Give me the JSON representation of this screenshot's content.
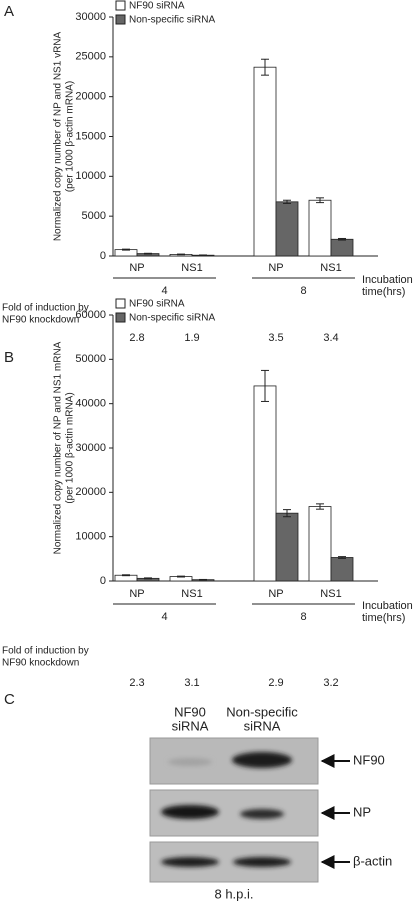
{
  "panel_labels": [
    "A",
    "B",
    "C"
  ],
  "chart_data": [
    {
      "type": "bar",
      "ylabel": [
        "Normalized copy number of NP and NS1 vRNA",
        "(per 1000 β-actin mRNA)"
      ],
      "categories": [
        "NP",
        "NS1",
        "NP",
        "NS1"
      ],
      "group_labels": [
        "4",
        "8"
      ],
      "group_axis_label": [
        "Incubation",
        "time(hrs)"
      ],
      "fold_label": [
        "Fold of induction by",
        "NF90 knockdown"
      ],
      "fold_values": [
        2.8,
        1.9,
        3.5,
        3.4
      ],
      "series": [
        {
          "name": "NF90 siRNA",
          "color": "#ffffff",
          "values": [
            800,
            200,
            23700,
            7000
          ],
          "errors": [
            60,
            40,
            1000,
            300
          ]
        },
        {
          "name": "Non-specific siRNA",
          "color": "#666666",
          "values": [
            300,
            100,
            6800,
            2100
          ],
          "errors": [
            40,
            30,
            200,
            100
          ]
        }
      ],
      "ylim": [
        0,
        30000
      ],
      "yticks": [
        0,
        5000,
        10000,
        15000,
        20000,
        25000,
        30000
      ],
      "legend": "top-left"
    },
    {
      "type": "bar",
      "ylabel": [
        "Normalized copy number of NP and NS1 mRNA",
        "(per 1000 β-actin mRNA)"
      ],
      "categories": [
        "NP",
        "NS1",
        "NP",
        "NS1"
      ],
      "group_labels": [
        "4",
        "8"
      ],
      "group_axis_label": [
        "Incubation",
        "time(hrs)"
      ],
      "fold_label": [
        "Fold of induction by",
        "NF90 knockdown"
      ],
      "fold_values": [
        2.3,
        3.1,
        2.9,
        3.2
      ],
      "series": [
        {
          "name": "NF90 siRNA",
          "color": "#ffffff",
          "values": [
            1300,
            1000,
            44000,
            16800
          ],
          "errors": [
            100,
            100,
            3500,
            600
          ]
        },
        {
          "name": "Non-specific siRNA",
          "color": "#666666",
          "values": [
            600,
            300,
            15300,
            5300
          ],
          "errors": [
            100,
            50,
            800,
            200
          ]
        }
      ],
      "ylim": [
        0,
        60000
      ],
      "yticks": [
        0,
        10000,
        20000,
        30000,
        40000,
        50000,
        60000
      ],
      "legend": "top-left"
    }
  ],
  "blot": {
    "column_labels": [
      [
        "NF90",
        "siRNA"
      ],
      [
        "Non-specific",
        "siRNA"
      ]
    ],
    "row_labels": [
      "NF90",
      "NP",
      "β-actin"
    ],
    "footer": "8 h.p.i."
  }
}
